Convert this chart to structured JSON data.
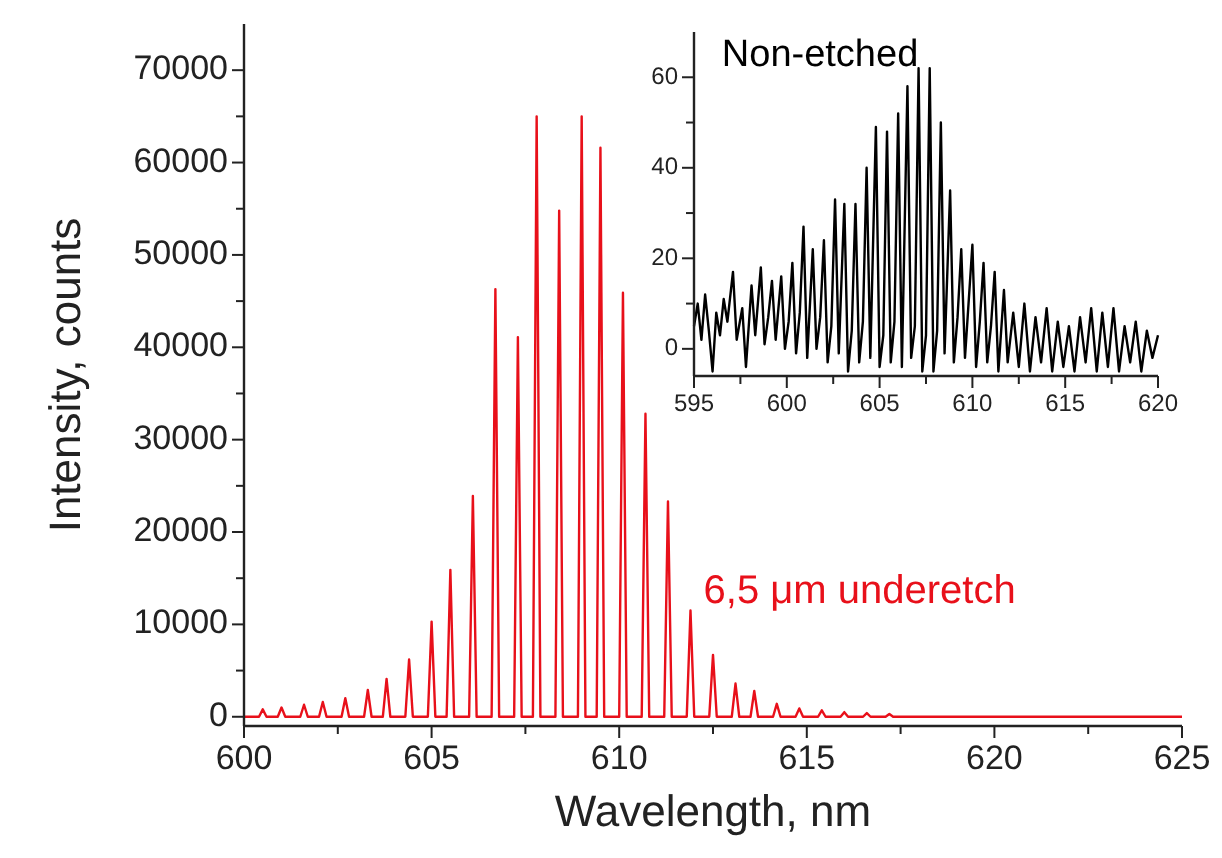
{
  "chart_data": [
    {
      "type": "line",
      "xlabel": "Wavelength, nm",
      "ylabel": "Intensity, counts",
      "xlim": [
        600,
        625
      ],
      "ylim": [
        -1000,
        75000
      ],
      "xticks": [
        600,
        {
          "value": 602.5,
          "label": null
        },
        605,
        {
          "value": 607.5,
          "label": null
        },
        610,
        {
          "value": 612.5,
          "label": null
        },
        615,
        {
          "value": 617.5,
          "label": null
        },
        620,
        {
          "value": 622.5,
          "label": null
        },
        625
      ],
      "yticks": [
        0,
        {
          "value": 5000,
          "label": null
        },
        10000,
        {
          "value": 15000,
          "label": null
        },
        20000,
        {
          "value": 25000,
          "label": null
        },
        30000,
        {
          "value": 35000,
          "label": null
        },
        40000,
        {
          "value": 45000,
          "label": null
        },
        50000,
        {
          "value": 55000,
          "label": null
        },
        60000,
        {
          "value": 65000,
          "label": null
        },
        70000
      ],
      "grid": false,
      "legend": false,
      "marker": "none",
      "line_style": "solid",
      "series": [
        {
          "name": "6,5 μm underetch",
          "color": "#e8101a",
          "x": [
            600.0,
            600.4,
            600.5,
            600.6,
            600.9,
            601.0,
            601.1,
            601.5,
            601.6,
            601.7,
            602.0,
            602.1,
            602.2,
            602.6,
            602.7,
            602.8,
            603.2,
            603.3,
            603.4,
            603.7,
            603.8,
            603.9,
            604.3,
            604.4,
            604.5,
            604.9,
            605.0,
            605.1,
            605.4,
            605.5,
            605.6,
            606.0,
            606.1,
            606.2,
            606.6,
            606.7,
            606.8,
            607.2,
            607.3,
            607.4,
            607.7,
            607.8,
            607.9,
            608.3,
            608.4,
            608.5,
            608.9,
            609.0,
            609.1,
            609.4,
            609.5,
            609.6,
            610.0,
            610.1,
            610.2,
            610.6,
            610.7,
            610.8,
            611.2,
            611.3,
            611.4,
            611.8,
            611.9,
            612.0,
            612.4,
            612.5,
            612.6,
            613.0,
            613.1,
            613.2,
            613.5,
            613.6,
            613.7,
            614.1,
            614.2,
            614.3,
            614.7,
            614.8,
            614.9,
            615.3,
            615.4,
            615.5,
            615.9,
            616.0,
            616.1,
            616.5,
            616.6,
            616.7,
            617.1,
            617.2,
            617.3,
            625.0
          ],
          "values": [
            0,
            0,
            800,
            0,
            0,
            1000,
            0,
            0,
            1300,
            0,
            0,
            1600,
            0,
            0,
            2000,
            0,
            0,
            2900,
            0,
            0,
            4100,
            0,
            0,
            6200,
            0,
            0,
            10300,
            0,
            0,
            15900,
            0,
            0,
            23900,
            0,
            0,
            46300,
            0,
            0,
            41100,
            0,
            0,
            65000,
            0,
            0,
            54800,
            0,
            0,
            65000,
            0,
            0,
            61600,
            0,
            0,
            45900,
            0,
            0,
            32800,
            0,
            0,
            23300,
            0,
            0,
            11500,
            0,
            0,
            6700,
            0,
            0,
            3600,
            0,
            0,
            2800,
            0,
            0,
            1400,
            0,
            0,
            900,
            0,
            0,
            700,
            0,
            0,
            500,
            0,
            0,
            400,
            0,
            0,
            300,
            0,
            0
          ]
        }
      ]
    },
    {
      "type": "line",
      "xlim": [
        595,
        620
      ],
      "ylim": [
        -6,
        70
      ],
      "xticks": [
        595,
        {
          "value": 597.5,
          "label": null
        },
        600,
        {
          "value": 602.5,
          "label": null
        },
        605,
        {
          "value": 607.5,
          "label": null
        },
        610,
        {
          "value": 612.5,
          "label": null
        },
        615,
        {
          "value": 617.5,
          "label": null
        },
        620
      ],
      "yticks": [
        0,
        {
          "value": 10,
          "label": null
        },
        20,
        {
          "value": 30,
          "label": null
        },
        40,
        {
          "value": 50,
          "label": null
        },
        60
      ],
      "grid": false,
      "legend": false,
      "marker": "none",
      "line_style": "solid",
      "series": [
        {
          "name": "Non-etched",
          "color": "#000000",
          "x": [
            595.0,
            595.2,
            595.4,
            595.6,
            595.8,
            596.0,
            596.2,
            596.4,
            596.6,
            596.8,
            597.1,
            597.3,
            597.6,
            597.8,
            598.1,
            598.3,
            598.6,
            598.8,
            599.0,
            599.2,
            599.4,
            599.7,
            599.9,
            600.1,
            600.3,
            600.5,
            600.7,
            600.9,
            601.1,
            601.4,
            601.6,
            601.8,
            602.0,
            602.2,
            602.4,
            602.6,
            602.8,
            603.1,
            603.3,
            603.5,
            603.7,
            603.9,
            604.1,
            604.3,
            604.5,
            604.8,
            605.0,
            605.2,
            605.4,
            605.6,
            605.8,
            606.0,
            606.2,
            606.5,
            606.7,
            606.9,
            607.1,
            607.3,
            607.5,
            607.7,
            607.9,
            608.1,
            608.3,
            608.5,
            608.8,
            609.0,
            609.2,
            609.4,
            609.6,
            610.0,
            610.2,
            610.4,
            610.6,
            610.8,
            611.0,
            611.2,
            611.4,
            611.7,
            611.9,
            612.2,
            612.5,
            612.8,
            613.1,
            613.4,
            613.7,
            614.0,
            614.3,
            614.6,
            614.9,
            615.2,
            615.5,
            615.8,
            616.1,
            616.4,
            616.7,
            617.0,
            617.3,
            617.6,
            617.9,
            618.2,
            618.5,
            618.8,
            619.1,
            619.4,
            619.7,
            620.0
          ],
          "values": [
            5,
            10,
            2,
            12,
            4,
            -5,
            8,
            3,
            11,
            6,
            17,
            2,
            9,
            -4,
            14,
            3,
            18,
            1,
            7,
            15,
            2,
            16,
            0,
            6,
            19,
            -1,
            8,
            27,
            -2,
            22,
            0,
            7,
            24,
            -3,
            5,
            33,
            -1,
            32,
            -5,
            4,
            32,
            -3,
            6,
            40,
            -2,
            49,
            -4,
            3,
            48,
            -3,
            6,
            52,
            -4,
            58,
            -2,
            5,
            62,
            -5,
            3,
            62,
            -5,
            4,
            50,
            -1,
            35,
            -3,
            7,
            22,
            -2,
            23,
            -4,
            6,
            19,
            -3,
            5,
            17,
            -5,
            13,
            -3,
            8,
            -4,
            10,
            -5,
            7,
            -3,
            9,
            -5,
            6,
            -4,
            5,
            -5,
            7,
            -3,
            9,
            -5,
            8,
            -4,
            9,
            -5,
            5,
            -3,
            6,
            -5,
            4,
            -2,
            3
          ]
        }
      ]
    }
  ]
}
